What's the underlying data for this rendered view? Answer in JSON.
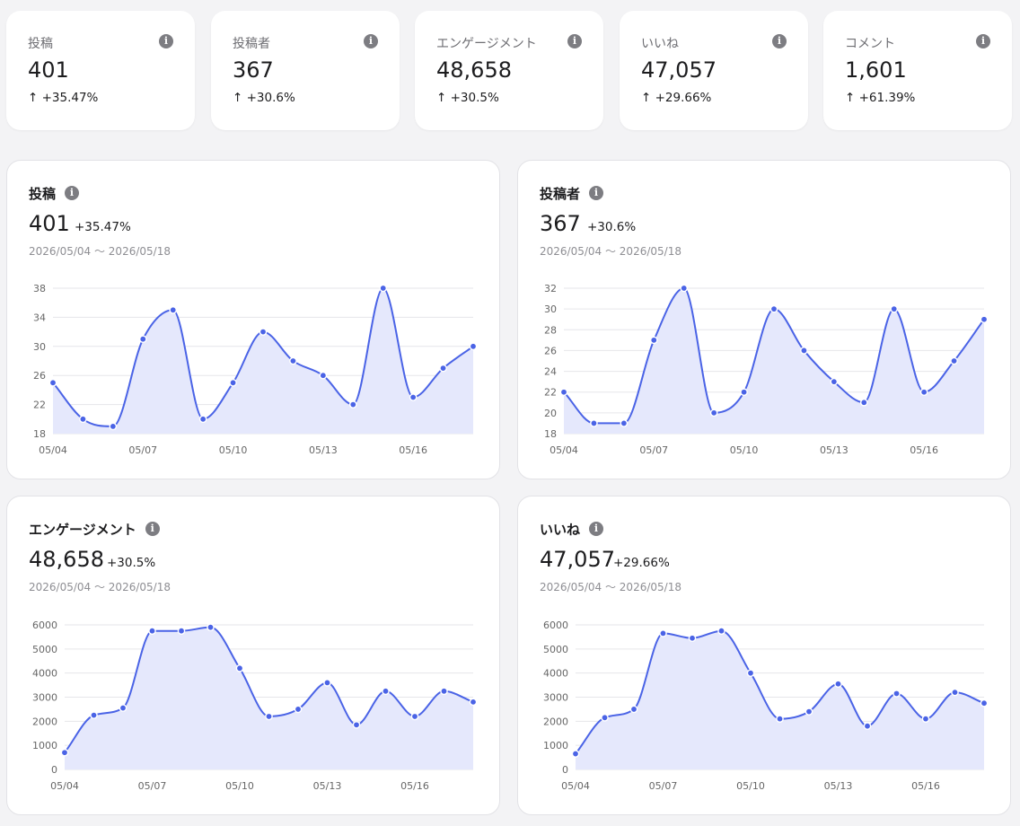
{
  "kpis": [
    {
      "label": "投稿",
      "value": "401",
      "change": "↑ +35.47%"
    },
    {
      "label": "投稿者",
      "value": "367",
      "change": "↑ +30.6%"
    },
    {
      "label": "エンゲージメント",
      "value": "48,658",
      "change": "↑ +30.5%"
    },
    {
      "label": "いいね",
      "value": "47,057",
      "change": "↑ +29.66%"
    },
    {
      "label": "コメント",
      "value": "1,601",
      "change": "↑ +61.39%"
    }
  ],
  "info_glyph": "i",
  "date_range": "2026/05/04 〜 2026/05/18",
  "colors": {
    "line": "#4a63e6",
    "fill": "#e5e8fc",
    "grid": "#e6e6ea"
  },
  "chart_data": [
    {
      "type": "area",
      "title": "投稿",
      "value": "401",
      "change": "+35.47%",
      "x": [
        "05/04",
        "05/05",
        "05/06",
        "05/07",
        "05/08",
        "05/09",
        "05/10",
        "05/11",
        "05/12",
        "05/13",
        "05/14",
        "05/15",
        "05/16",
        "05/17",
        "05/18"
      ],
      "xticks": [
        "05/04",
        "05/07",
        "05/10",
        "05/13",
        "05/16"
      ],
      "series": [
        {
          "values": [
            25,
            20,
            19,
            31,
            35,
            20,
            25,
            32,
            28,
            26,
            22,
            38,
            23,
            27,
            30
          ]
        }
      ],
      "ylim": [
        18,
        38
      ],
      "yticks": [
        18,
        22,
        26,
        30,
        34,
        38
      ]
    },
    {
      "type": "area",
      "title": "投稿者",
      "value": "367",
      "change": "+30.6%",
      "x": [
        "05/04",
        "05/05",
        "05/06",
        "05/07",
        "05/08",
        "05/09",
        "05/10",
        "05/11",
        "05/12",
        "05/13",
        "05/14",
        "05/15",
        "05/16",
        "05/17",
        "05/18"
      ],
      "xticks": [
        "05/04",
        "05/07",
        "05/10",
        "05/13",
        "05/16"
      ],
      "series": [
        {
          "values": [
            22,
            19,
            19,
            27,
            32,
            20,
            22,
            30,
            26,
            23,
            21,
            30,
            22,
            25,
            29
          ]
        }
      ],
      "ylim": [
        18,
        32
      ],
      "yticks": [
        18,
        20,
        22,
        24,
        26,
        28,
        30,
        32
      ]
    },
    {
      "type": "area",
      "title": "エンゲージメント",
      "value": "48,658",
      "change": "+30.5%",
      "x": [
        "05/04",
        "05/05",
        "05/06",
        "05/07",
        "05/08",
        "05/09",
        "05/10",
        "05/11",
        "05/12",
        "05/13",
        "05/14",
        "05/15",
        "05/16",
        "05/17",
        "05/18"
      ],
      "xticks": [
        "05/04",
        "05/07",
        "05/10",
        "05/13",
        "05/16"
      ],
      "series": [
        {
          "values": [
            700,
            2250,
            2550,
            5750,
            5750,
            5900,
            4200,
            2200,
            2500,
            3600,
            1850,
            3250,
            2200,
            3250,
            2800
          ]
        }
      ],
      "ylim": [
        0,
        6000
      ],
      "yticks": [
        0,
        1000,
        2000,
        3000,
        4000,
        5000,
        6000
      ]
    },
    {
      "type": "area",
      "title": "いいね",
      "value": "47,057",
      "change": "+29.66%",
      "x": [
        "05/04",
        "05/05",
        "05/06",
        "05/07",
        "05/08",
        "05/09",
        "05/10",
        "05/11",
        "05/12",
        "05/13",
        "05/14",
        "05/15",
        "05/16",
        "05/17",
        "05/18"
      ],
      "xticks": [
        "05/04",
        "05/07",
        "05/10",
        "05/13",
        "05/16"
      ],
      "series": [
        {
          "values": [
            650,
            2150,
            2500,
            5650,
            5450,
            5750,
            4000,
            2100,
            2400,
            3550,
            1800,
            3150,
            2100,
            3200,
            2750
          ]
        }
      ],
      "ylim": [
        0,
        6000
      ],
      "yticks": [
        0,
        1000,
        2000,
        3000,
        4000,
        5000,
        6000
      ]
    }
  ]
}
